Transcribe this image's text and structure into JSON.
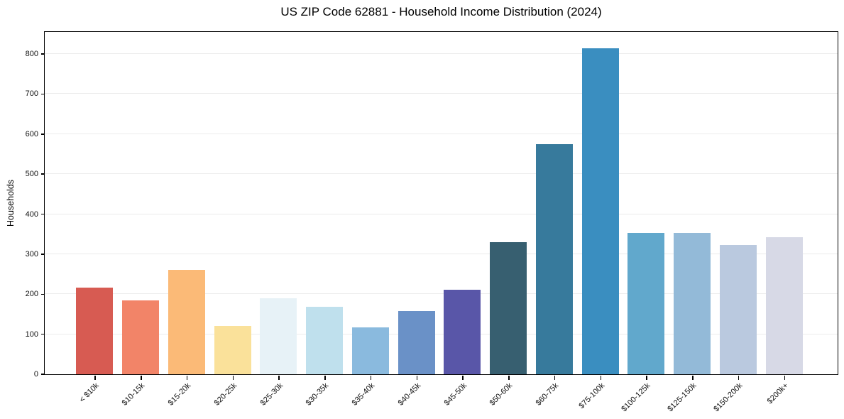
{
  "title": "US ZIP Code 62881 - Household Income Distribution (2024)",
  "chart_data": {
    "type": "bar",
    "title": "US ZIP Code 62881 - Household Income Distribution (2024)",
    "xlabel": "",
    "ylabel": "Households",
    "categories": [
      "< $10k",
      "$10-15k",
      "$15-20k",
      "$20-25k",
      "$25-30k",
      "$30-35k",
      "$35-40k",
      "$40-45k",
      "$45-50k",
      "$50-60k",
      "$60-75k",
      "$75-100k",
      "$100-125k",
      "$125-150k",
      "$150-200k",
      "$200k+"
    ],
    "values": [
      216,
      185,
      261,
      120,
      189,
      169,
      117,
      158,
      211,
      330,
      575,
      814,
      353,
      353,
      323,
      342
    ],
    "bar_colors": [
      "#d75b52",
      "#f28468",
      "#fbba77",
      "#fae19a",
      "#e7f2f7",
      "#bfe0ed",
      "#8abade",
      "#6a91c7",
      "#5956a8",
      "#375f70",
      "#377a9c",
      "#3a8ec0",
      "#61a8cc",
      "#93bad8",
      "#bac9df",
      "#d7d9e6"
    ],
    "yticks": [
      0,
      100,
      200,
      300,
      400,
      500,
      600,
      700,
      800
    ],
    "ylim": [
      0,
      855
    ],
    "grid": "horizontal",
    "grid_color": "#ececec",
    "frame_color": "#000000",
    "background_color": "#ffffff",
    "legend": "none",
    "x_tick_rotation_deg": 45
  }
}
